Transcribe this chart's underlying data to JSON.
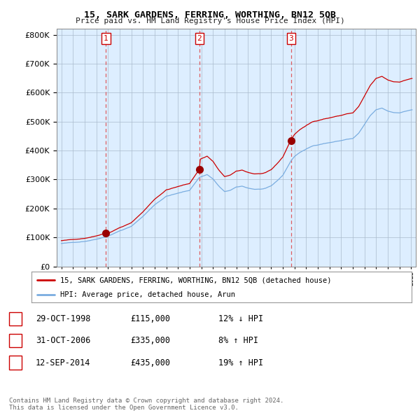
{
  "title": "15, SARK GARDENS, FERRING, WORTHING, BN12 5QB",
  "subtitle": "Price paid vs. HM Land Registry's House Price Index (HPI)",
  "line1_label": "15, SARK GARDENS, FERRING, WORTHING, BN12 5QB (detached house)",
  "line2_label": "HPI: Average price, detached house, Arun",
  "line1_color": "#cc0000",
  "line2_color": "#7aade0",
  "sale_marker_color": "#990000",
  "vline_color": "#dd4444",
  "sales": [
    {
      "num": 1,
      "date": "29-OCT-1998",
      "price": 115000,
      "pct": "12%",
      "dir": "↓"
    },
    {
      "num": 2,
      "date": "31-OCT-2006",
      "price": 335000,
      "pct": "8%",
      "dir": "↑"
    },
    {
      "num": 3,
      "date": "12-SEP-2014",
      "price": 435000,
      "pct": "19%",
      "dir": "↑"
    }
  ],
  "sale_years": [
    1998.83,
    2006.83,
    2014.7
  ],
  "sale_prices": [
    115000,
    335000,
    435000
  ],
  "footer": "Contains HM Land Registry data © Crown copyright and database right 2024.\nThis data is licensed under the Open Government Licence v3.0.",
  "ylim": [
    0,
    820000
  ],
  "yticks": [
    0,
    100000,
    200000,
    300000,
    400000,
    500000,
    600000,
    700000,
    800000
  ],
  "plot_bg_color": "#ddeeff",
  "fig_bg_color": "#ffffff",
  "grid_color": "#aabbcc"
}
